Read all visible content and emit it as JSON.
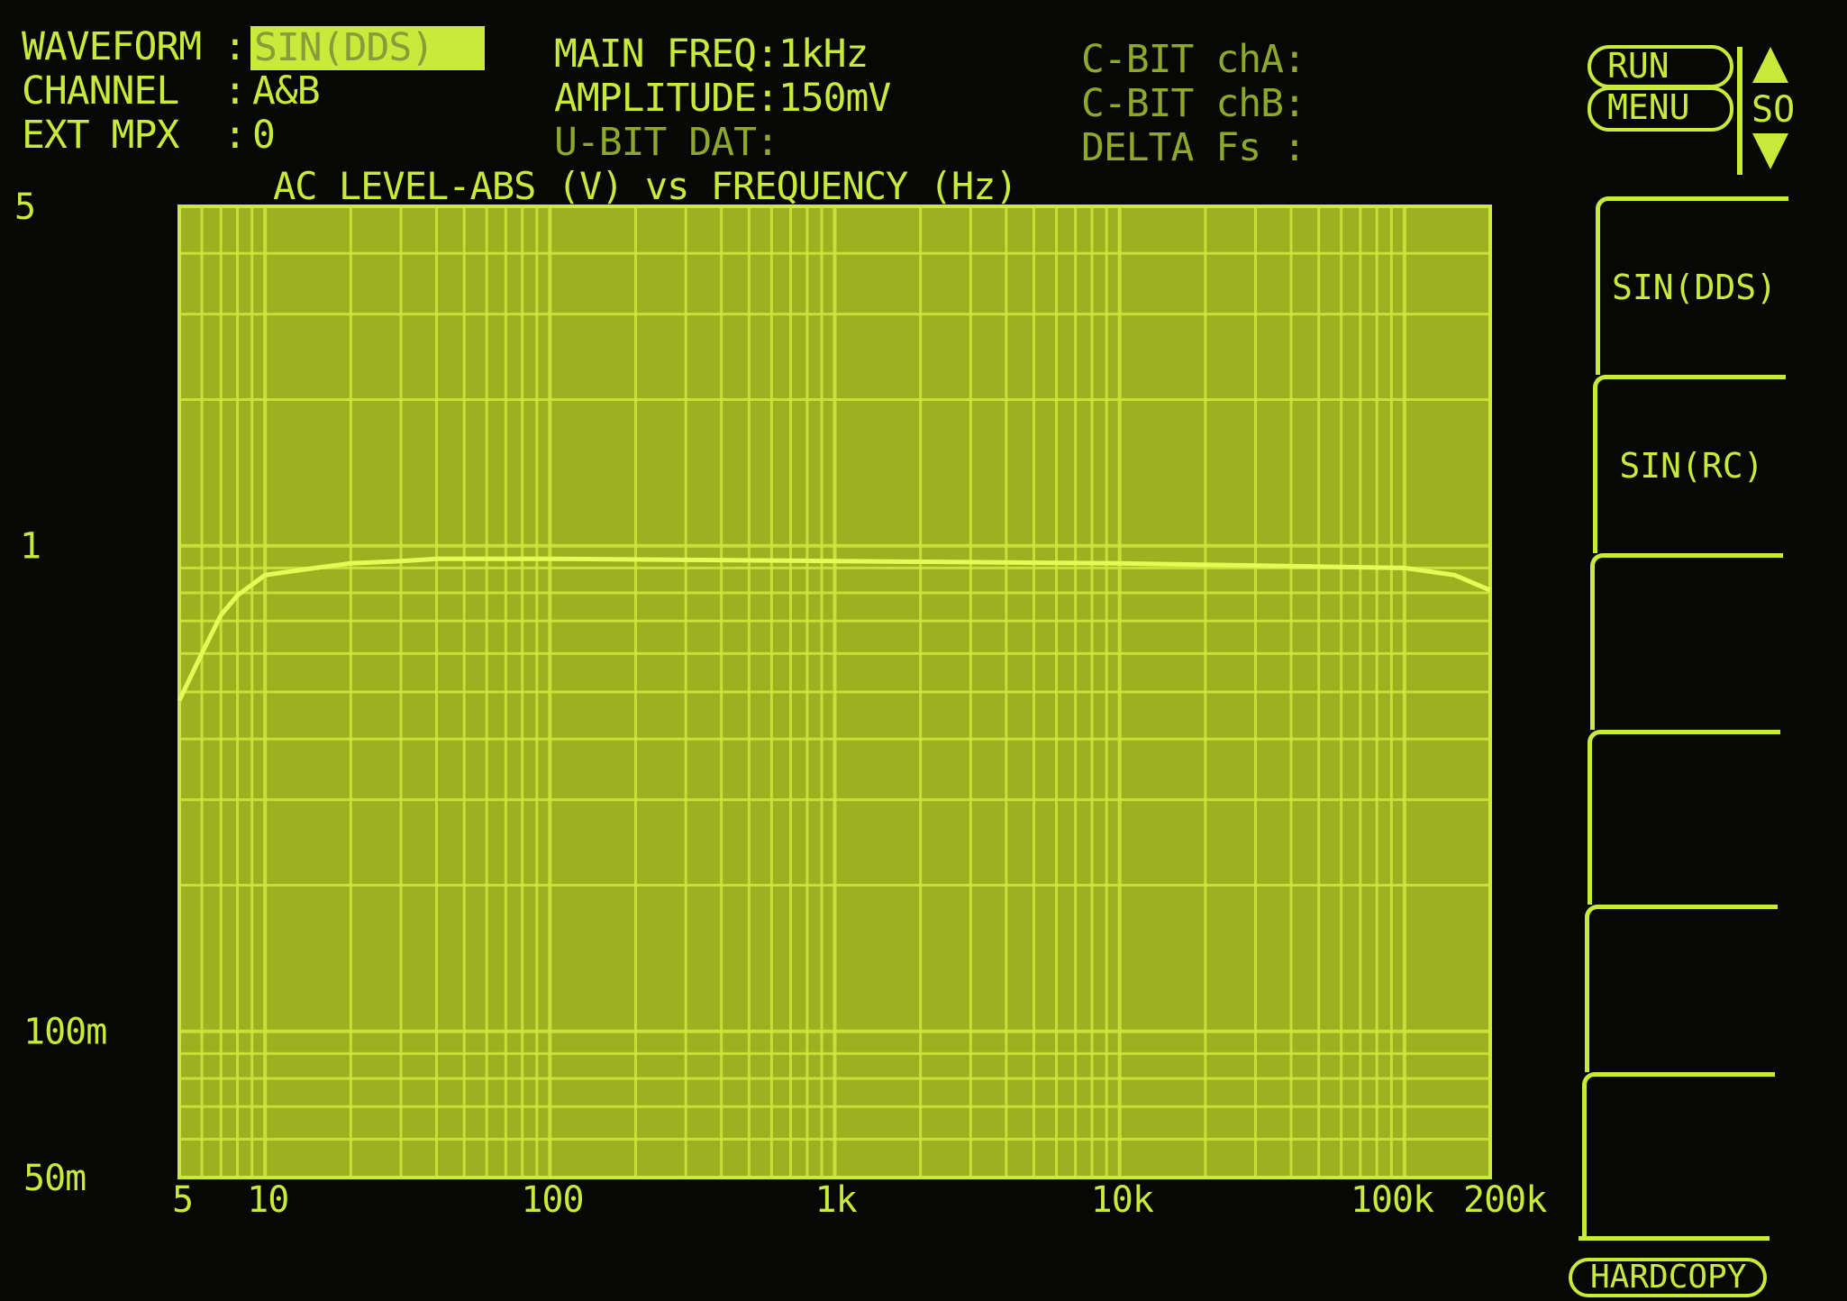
{
  "status": {
    "waveform_label": "WAVEFORM :",
    "waveform_value": "SIN(DDS)",
    "channel_label": "CHANNEL  :",
    "channel_value": "A&B",
    "extmpx_label": "EXT MPX  :",
    "extmpx_value": "0",
    "main_freq": "MAIN FREQ:1kHz",
    "amplitude": "AMPLITUDE:150mV",
    "ubit": "U-BIT DAT:",
    "cbit_a": "C-BIT chA:",
    "cbit_b": "C-BIT chB:",
    "delta_fs": "DELTA Fs :"
  },
  "controls": {
    "run": "RUN",
    "menu": "MENU",
    "scroll": "SO",
    "hardcopy": "HARDCOPY",
    "softkeys": [
      "SIN(DDS)",
      "SIN(RC)",
      "",
      "",
      "",
      ""
    ]
  },
  "colors": {
    "phosphor": "#c9ea3a",
    "plot_fill": "#9db020",
    "grid": "#cfe83e",
    "background": "#070805"
  },
  "chart_data": {
    "type": "line",
    "title": "AC LEVEL-ABS (V) vs FREQUENCY (Hz)",
    "xscale": "log",
    "yscale": "log",
    "xlim": [
      5,
      200000
    ],
    "ylim": [
      0.05,
      5
    ],
    "grid": true,
    "xticks": [
      {
        "v": 5,
        "label": "5"
      },
      {
        "v": 10,
        "label": "10"
      },
      {
        "v": 100,
        "label": "100"
      },
      {
        "v": 1000,
        "label": "1k"
      },
      {
        "v": 10000,
        "label": "10k"
      },
      {
        "v": 100000,
        "label": "100k"
      },
      {
        "v": 200000,
        "label": "200k"
      }
    ],
    "yticks": [
      {
        "v": 5,
        "label": "5"
      },
      {
        "v": 1,
        "label": "1"
      },
      {
        "v": 0.1,
        "label": "100m"
      },
      {
        "v": 0.05,
        "label": "50m"
      }
    ],
    "series": [
      {
        "x": [
          5,
          6,
          7,
          8,
          10,
          15,
          20,
          30,
          40,
          100,
          1000,
          10000,
          100000,
          150000,
          200000
        ],
        "y": [
          0.48,
          0.6,
          0.72,
          0.79,
          0.87,
          0.9,
          0.92,
          0.93,
          0.94,
          0.94,
          0.93,
          0.92,
          0.9,
          0.87,
          0.81
        ]
      }
    ]
  }
}
